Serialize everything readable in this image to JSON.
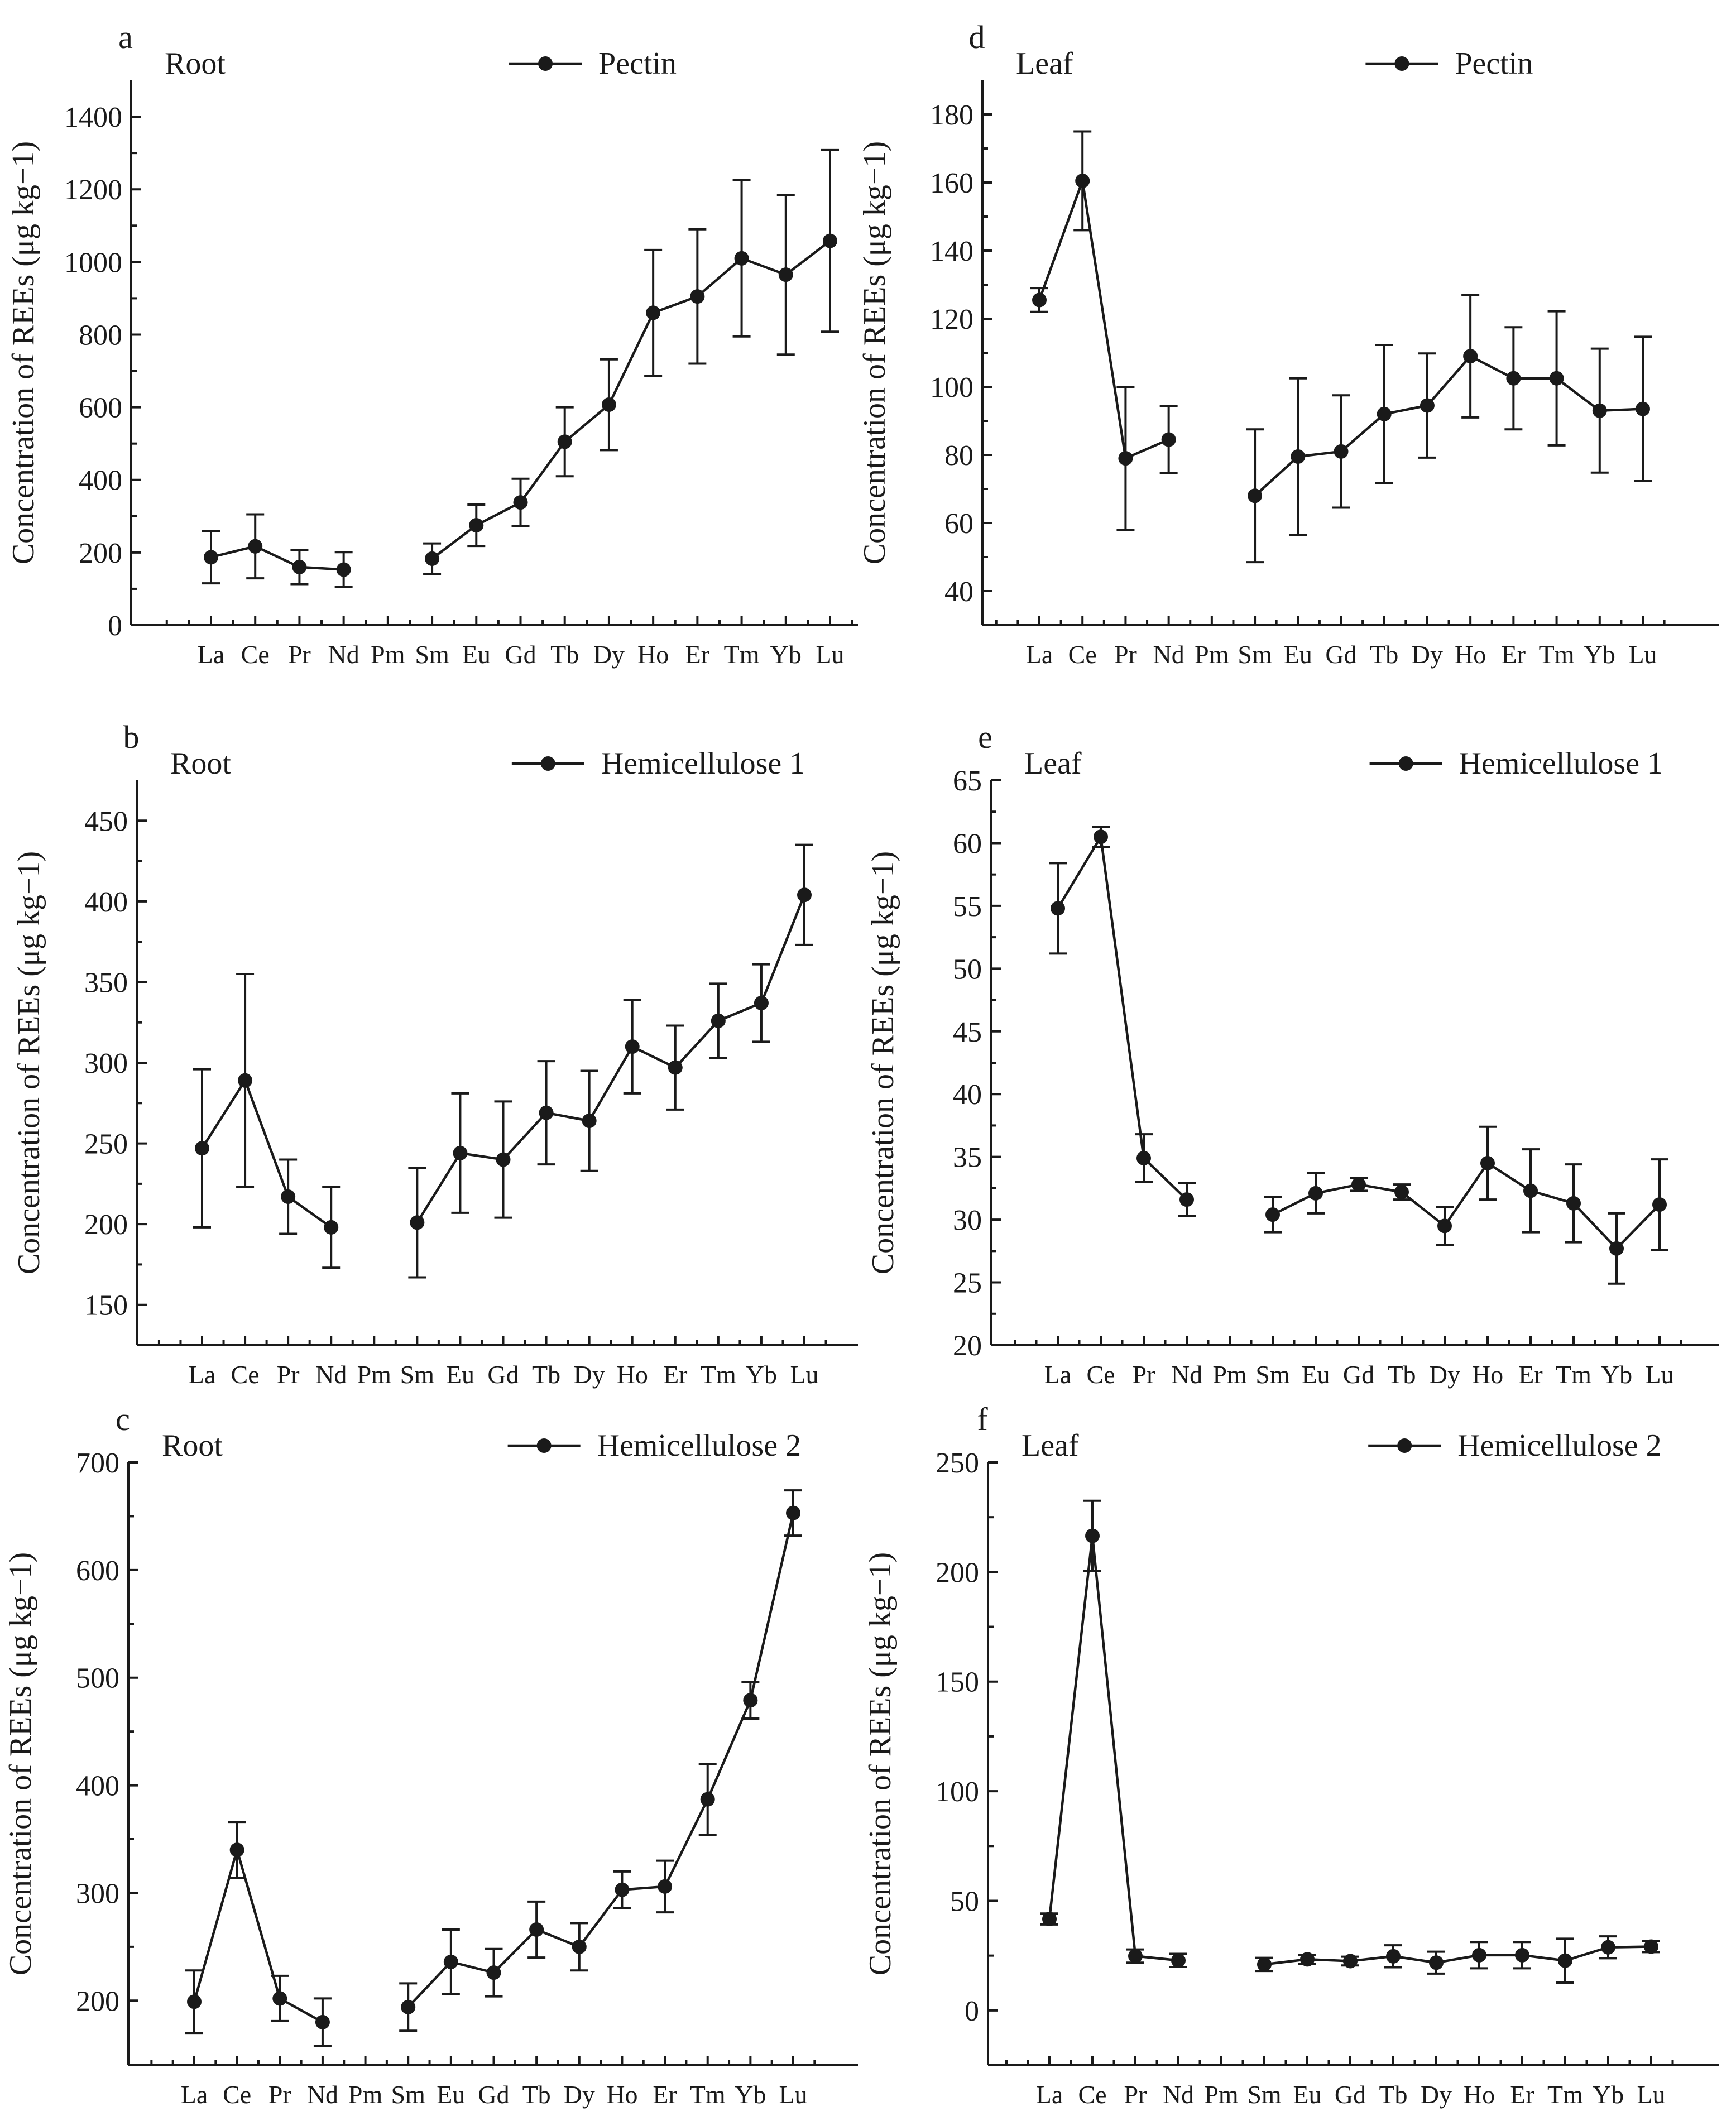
{
  "chart_data": [
    {
      "type": "line",
      "panel_label": "a",
      "tissue_label": "Root",
      "legend": "Pectin",
      "ylabel": "Concentration of REEs (μg kg−1)",
      "ylim": [
        0,
        1500
      ],
      "yticks": [
        0,
        200,
        400,
        600,
        800,
        1000,
        1200,
        1400
      ],
      "categories": [
        "La",
        "Ce",
        "Pr",
        "Nd",
        "Pm",
        "Sm",
        "Eu",
        "Gd",
        "Tb",
        "Dy",
        "Ho",
        "Er",
        "Tm",
        "Yb",
        "Lu"
      ],
      "values": [
        187,
        217,
        160,
        153,
        null,
        183,
        275,
        338,
        505,
        607,
        860,
        905,
        1010,
        965,
        1058
      ],
      "errors": [
        72,
        88,
        47,
        48,
        null,
        42,
        57,
        65,
        95,
        125,
        173,
        185,
        215,
        220,
        250
      ]
    },
    {
      "type": "line",
      "panel_label": "b",
      "tissue_label": "Root",
      "legend": "Hemicellulose 1",
      "ylabel": "Concentration of REEs (μg kg−1)",
      "ylim": [
        125,
        475
      ],
      "yticks": [
        150,
        200,
        250,
        300,
        350,
        400,
        450
      ],
      "categories": [
        "La",
        "Ce",
        "Pr",
        "Nd",
        "Pm",
        "Sm",
        "Eu",
        "Gd",
        "Tb",
        "Dy",
        "Ho",
        "Er",
        "Tm",
        "Yb",
        "Lu"
      ],
      "values": [
        247,
        289,
        217,
        198,
        null,
        201,
        244,
        240,
        269,
        264,
        310,
        297,
        326,
        337,
        404
      ],
      "errors": [
        49,
        66,
        23,
        25,
        null,
        34,
        37,
        36,
        32,
        31,
        29,
        26,
        23,
        24,
        31
      ]
    },
    {
      "type": "line",
      "panel_label": "c",
      "tissue_label": "Root",
      "legend": "Hemicellulose 2",
      "ylabel": "Concentration of REEs (μg kg−1)",
      "ylim": [
        140,
        700
      ],
      "yticks": [
        200,
        300,
        400,
        500,
        600,
        700
      ],
      "categories": [
        "La",
        "Ce",
        "Pr",
        "Nd",
        "Pm",
        "Sm",
        "Eu",
        "Gd",
        "Tb",
        "Dy",
        "Ho",
        "Er",
        "Tm",
        "Yb",
        "Lu"
      ],
      "values": [
        199,
        340,
        202,
        180,
        null,
        194,
        236,
        226,
        266,
        250,
        303,
        306,
        387,
        479,
        653
      ],
      "errors": [
        29,
        26,
        21,
        22,
        null,
        22,
        30,
        22,
        26,
        22,
        17,
        24,
        33,
        17,
        21
      ]
    },
    {
      "type": "line",
      "panel_label": "d",
      "tissue_label": "Leaf",
      "legend": "Pectin",
      "ylabel": "Concentration of REEs (μg kg−1)",
      "ylim": [
        30,
        190
      ],
      "yticks": [
        40,
        60,
        80,
        100,
        120,
        140,
        160,
        180
      ],
      "categories": [
        "La",
        "Ce",
        "Pr",
        "Nd",
        "Pm",
        "Sm",
        "Eu",
        "Gd",
        "Tb",
        "Dy",
        "Ho",
        "Er",
        "Tm",
        "Yb",
        "Lu"
      ],
      "values": [
        125.5,
        160.5,
        79,
        84.5,
        null,
        68,
        79.5,
        81,
        92,
        94.5,
        109,
        102.5,
        102.5,
        93,
        93.5
      ],
      "errors": [
        3.5,
        14.5,
        21,
        9.8,
        null,
        19.5,
        23,
        16.5,
        20.3,
        15.3,
        18,
        15,
        19.7,
        18.2,
        21.2
      ]
    },
    {
      "type": "line",
      "panel_label": "e",
      "tissue_label": "Leaf",
      "legend": "Hemicellulose 1",
      "ylabel": "Concentration of REEs (μg kg−1)",
      "ylim": [
        20,
        65
      ],
      "yticks": [
        20,
        25,
        30,
        35,
        40,
        45,
        50,
        55,
        60,
        65
      ],
      "categories": [
        "La",
        "Ce",
        "Pr",
        "Nd",
        "Pm",
        "Sm",
        "Eu",
        "Gd",
        "Tb",
        "Dy",
        "Ho",
        "Er",
        "Tm",
        "Yb",
        "Lu"
      ],
      "values": [
        54.8,
        60.5,
        34.9,
        31.6,
        null,
        30.4,
        32.1,
        32.8,
        32.2,
        29.5,
        34.5,
        32.3,
        31.3,
        27.7,
        31.2
      ],
      "errors": [
        3.6,
        0.8,
        1.9,
        1.3,
        null,
        1.4,
        1.6,
        0.5,
        0.6,
        1.5,
        2.9,
        3.3,
        3.1,
        2.8,
        3.6
      ]
    },
    {
      "type": "line",
      "panel_label": "f",
      "tissue_label": "Leaf",
      "legend": "Hemicellulose 2",
      "ylabel": "Concentration of REEs (μg kg−1)",
      "ylim": [
        -25,
        250
      ],
      "yticks": [
        0,
        50,
        100,
        150,
        200,
        250
      ],
      "categories": [
        "La",
        "Ce",
        "Pr",
        "Nd",
        "Pm",
        "Sm",
        "Eu",
        "Gd",
        "Tb",
        "Dy",
        "Ho",
        "Er",
        "Tm",
        "Yb",
        "Lu"
      ],
      "values": [
        41.7,
        216.5,
        24.8,
        22.8,
        null,
        21,
        23.3,
        22.5,
        24.7,
        21.8,
        25.2,
        25.2,
        22.7,
        28.8,
        29.1
      ],
      "errors": [
        2.5,
        16,
        3,
        3,
        null,
        3,
        2,
        2,
        5,
        5,
        6,
        6,
        10,
        5,
        2.5
      ]
    }
  ]
}
